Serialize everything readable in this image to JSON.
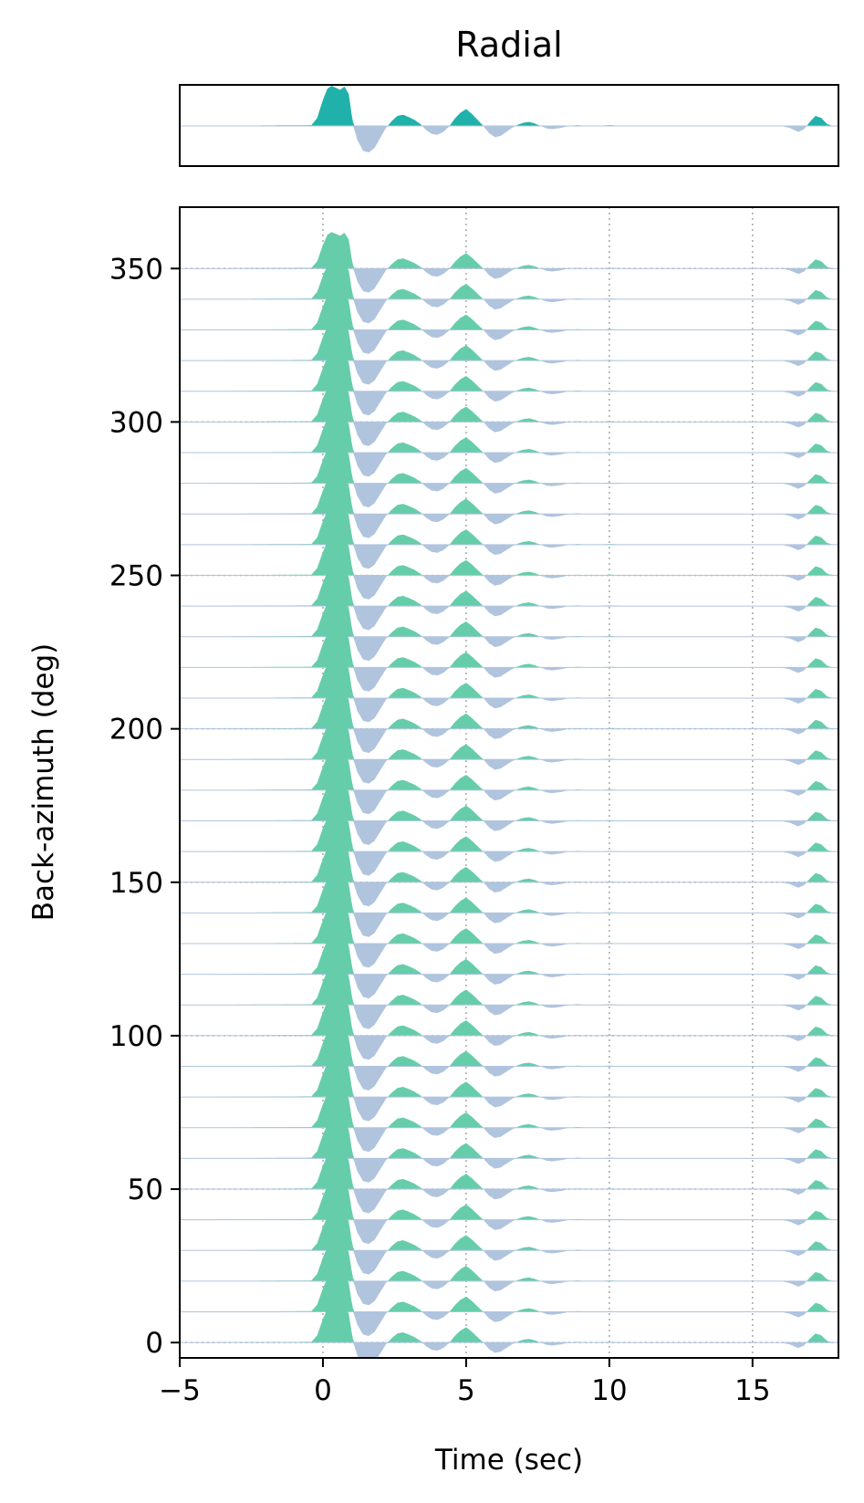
{
  "chart_data": [
    {
      "type": "area",
      "panel": "stack",
      "title": "Radial",
      "xlabel": "",
      "ylabel": "",
      "xlim": [
        -5,
        18
      ],
      "x_ticks": [],
      "y_ticks": [],
      "grid": false,
      "series": [
        {
          "name": "",
          "description_values": {
            "x": [
              -5,
              -0.4,
              -0.2,
              0,
              0.15,
              0.3,
              0.45,
              0.6,
              0.75,
              0.9,
              1.0,
              1.1,
              1.2,
              1.4,
              1.6,
              1.8,
              2.0,
              2.2,
              2.4,
              2.6,
              2.8,
              3.0,
              3.2,
              3.4,
              3.6,
              3.8,
              4.0,
              4.2,
              4.4,
              4.6,
              4.8,
              5.0,
              5.2,
              5.4,
              5.6,
              5.8,
              6.0,
              6.2,
              6.4,
              6.6,
              6.8,
              7.0,
              7.2,
              7.4,
              7.6,
              7.8,
              8.0,
              8.3,
              8.6,
              8.9,
              9.2,
              9.6,
              10.0,
              10.5,
              11.0,
              12.0,
              13.0,
              14.0,
              15.0,
              16.0,
              16.3,
              16.6,
              16.8,
              17.0,
              17.2,
              17.4,
              17.6,
              17.8,
              18
            ],
            "y": [
              0,
              0.02,
              0.2,
              0.65,
              0.92,
              1.0,
              0.95,
              0.9,
              0.98,
              0.8,
              0.3,
              -0.1,
              -0.35,
              -0.62,
              -0.66,
              -0.55,
              -0.3,
              -0.05,
              0.12,
              0.25,
              0.28,
              0.22,
              0.15,
              0.05,
              -0.1,
              -0.2,
              -0.22,
              -0.15,
              -0.02,
              0.18,
              0.33,
              0.42,
              0.3,
              0.15,
              0.0,
              -0.18,
              -0.28,
              -0.25,
              -0.15,
              -0.05,
              0.03,
              0.08,
              0.1,
              0.06,
              0.0,
              -0.06,
              -0.08,
              -0.05,
              0.0,
              0.02,
              0.0,
              0.0,
              0.02,
              0.0,
              0.0,
              0.0,
              0.0,
              0.0,
              0.0,
              0.0,
              -0.05,
              -0.15,
              -0.08,
              0.1,
              0.25,
              0.2,
              0.05,
              0.0,
              0
            ]
          }
        }
      ]
    },
    {
      "type": "area",
      "panel": "traces",
      "title": "",
      "xlabel": "Time (sec)",
      "ylabel": "Back-azimuth (deg)",
      "xlim": [
        -5,
        18
      ],
      "ylim": [
        -5,
        370
      ],
      "x_ticks": [
        "−5",
        "0",
        "5",
        "10",
        "15"
      ],
      "x_tick_values": [
        -5,
        0,
        5,
        10,
        15
      ],
      "y_ticks": [
        "0",
        "50",
        "100",
        "150",
        "200",
        "250",
        "300",
        "350"
      ],
      "y_tick_values": [
        0,
        50,
        100,
        150,
        200,
        250,
        300,
        350
      ],
      "grid": true,
      "traces": {
        "start": 0,
        "step": 10,
        "count": 36
      }
    }
  ],
  "colors": {
    "stack_positive": "#20b2aa",
    "trace_positive": "#66cdaa",
    "negative": "#b0c4de",
    "grid": "#a9a9a9",
    "axis": "#000000"
  }
}
